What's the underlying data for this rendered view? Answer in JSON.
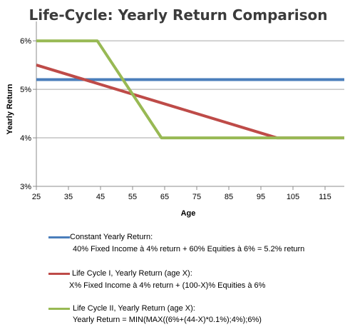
{
  "chart_data": {
    "type": "line",
    "title": "Life-Cycle: Yearly Return Comparison",
    "xlabel": "Age",
    "ylabel": "Yearly Return",
    "xlim": [
      25,
      121
    ],
    "ylim": [
      3,
      6.4
    ],
    "x_ticks": [
      25,
      35,
      45,
      55,
      65,
      75,
      85,
      95,
      105,
      115
    ],
    "y_ticks": [
      3,
      4,
      5,
      6
    ],
    "y_tick_labels": [
      "3%",
      "4%",
      "5%",
      "6%"
    ],
    "grid": "horizontal",
    "series": [
      {
        "name": "Constant Yearly Return",
        "color": "#4a7ebb",
        "x": [
          25,
          121
        ],
        "y": [
          5.2,
          5.2
        ]
      },
      {
        "name": "Life Cycle I, Yearly Return (age X)",
        "color": "#be4b48",
        "x": [
          25,
          100,
          121
        ],
        "y": [
          5.5,
          4.0,
          4.0
        ]
      },
      {
        "name": "Life Cycle II, Yearly Return (age X)",
        "color": "#98b954",
        "x": [
          25,
          44,
          64,
          121
        ],
        "y": [
          6.0,
          6.0,
          4.0,
          4.0
        ]
      }
    ]
  },
  "legend": [
    {
      "line1": "Constant Yearly Return:",
      "line2": "40% Fixed Income à 4% return + 60% Equities à 6% = 5.2% return",
      "color": "#4a7ebb"
    },
    {
      "line1": "Life Cycle I, Yearly Return (age X):",
      "line2": "X% Fixed Income à 4% return + (100-X)% Equities à 6%",
      "color": "#be4b48"
    },
    {
      "line1": "Life Cycle II, Yearly Return (age X):",
      "line2": "Yearly Return = MIN(MAX((6%+(44-X)*0.1%);4%);6%)",
      "color": "#98b954"
    }
  ]
}
